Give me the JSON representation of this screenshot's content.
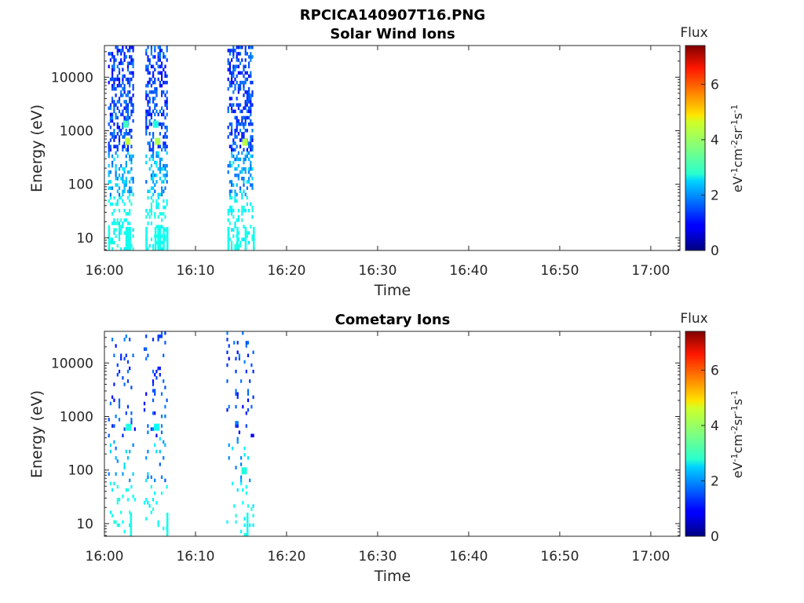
{
  "figure_title": "RPCICA140907T16.PNG",
  "chart_data": [
    {
      "type": "heatmap",
      "title": "Solar Wind Ions",
      "xlabel": "Time",
      "ylabel": "Energy (eV)",
      "x_ticks": [
        "16:00",
        "16:10",
        "16:20",
        "16:30",
        "16:40",
        "16:50",
        "17:00"
      ],
      "x_range_minutes": [
        0,
        63.2
      ],
      "y_ticks": [
        10,
        100,
        1000,
        10000
      ],
      "y_tick_labels": [
        "10",
        "100",
        "1000",
        "10000"
      ],
      "y_range_eV": [
        5.8,
        39000
      ],
      "y_scale": "log",
      "colorbar": {
        "title": "Flux",
        "units": "eV⁻¹cm⁻²sr⁻¹s⁻¹",
        "range": [
          0,
          7.4
        ],
        "ticks": [
          0,
          2,
          4,
          6
        ],
        "tick_labels": [
          "0",
          "2",
          "4",
          "6"
        ],
        "colormap": "jet"
      },
      "activity_intervals_minutes": [
        [
          0.4,
          3.1
        ],
        [
          4.5,
          6.8
        ],
        [
          13.5,
          16.3
        ]
      ],
      "flux_level_notes": "Sparse scattered blue pixels (flux ~1-2) from ~50 eV up to ~40000 eV in each interval; cyan (flux ~2.5-3) below 100 eV; peaks near 600 eV reach ~4.",
      "peaks": [
        {
          "t_min": 2.5,
          "energy_eV": 620,
          "flux": 4.2
        },
        {
          "t_min": 5.8,
          "energy_eV": 620,
          "flux": 4.0
        },
        {
          "t_min": 15.4,
          "energy_eV": 600,
          "flux": 4.1
        },
        {
          "t_min": 2.3,
          "energy_eV": 1300,
          "flux": 3.2
        },
        {
          "t_min": 5.6,
          "energy_eV": 1300,
          "flux": 3.0
        }
      ],
      "dense_columns_minutes": [
        0.4,
        2.3,
        2.5,
        2.7,
        4.5,
        5.5,
        5.8,
        6.0,
        6.4,
        6.8,
        13.5,
        14.5,
        15.4,
        16.3
      ]
    },
    {
      "type": "heatmap",
      "title": "Cometary Ions",
      "xlabel": "Time",
      "ylabel": "Energy (eV)",
      "x_ticks": [
        "16:00",
        "16:10",
        "16:20",
        "16:30",
        "16:40",
        "16:50",
        "17:00"
      ],
      "x_range_minutes": [
        0,
        63.2
      ],
      "y_ticks": [
        10,
        100,
        1000,
        10000
      ],
      "y_tick_labels": [
        "10",
        "100",
        "1000",
        "10000"
      ],
      "y_range_eV": [
        5.8,
        39000
      ],
      "y_scale": "log",
      "colorbar": {
        "title": "Flux",
        "units": "eV⁻¹cm⁻²sr⁻¹s⁻¹",
        "range": [
          0,
          7.4
        ],
        "ticks": [
          0,
          2,
          4,
          6
        ],
        "tick_labels": [
          "0",
          "2",
          "4",
          "6"
        ],
        "colormap": "jet"
      },
      "activity_intervals_minutes": [
        [
          0.4,
          3.3
        ],
        [
          4.3,
          6.8
        ],
        [
          13.4,
          16.3
        ]
      ],
      "flux_level_notes": "Much sparser than solar wind; isolated blue pixels; cyan blocks (flux ~2.5-3) near 100 eV and 10 eV.",
      "peaks": [
        {
          "t_min": 2.6,
          "energy_eV": 620,
          "flux": 3.0
        },
        {
          "t_min": 5.7,
          "energy_eV": 620,
          "flux": 2.8
        },
        {
          "t_min": 15.3,
          "energy_eV": 95,
          "flux": 3.0
        }
      ],
      "dense_columns_minutes": [
        2.8,
        6.8,
        15.6
      ]
    }
  ]
}
